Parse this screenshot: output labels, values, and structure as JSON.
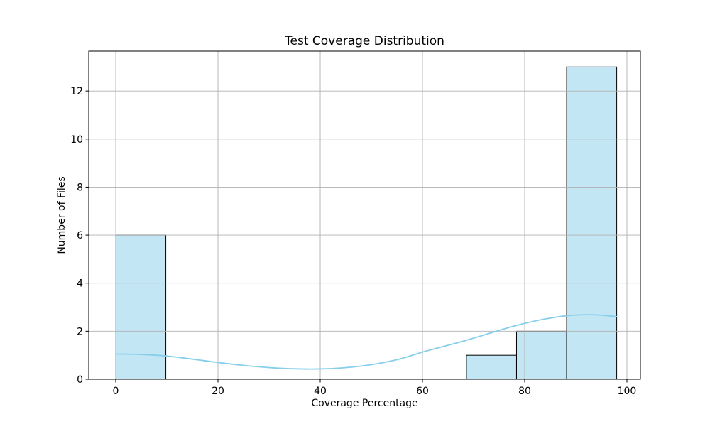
{
  "figure": {
    "background": "#ffffff"
  },
  "chart_data": {
    "type": "bar",
    "subtype": "histogram-with-kde",
    "title": "Test Coverage Distribution",
    "xlabel": "Coverage Percentage",
    "ylabel": "Number of Files",
    "xlim": [
      -5.28,
      102.64
    ],
    "ylim": [
      0,
      13.66
    ],
    "xticks": [
      0,
      20,
      40,
      60,
      80,
      100
    ],
    "yticks": [
      0,
      2,
      4,
      6,
      8,
      10,
      12
    ],
    "grid": true,
    "legend": false,
    "bin_edges": [
      0,
      9.8,
      19.6,
      29.4,
      39.2,
      49.0,
      58.8,
      68.6,
      78.4,
      88.2,
      98.0
    ],
    "bin_counts": [
      6,
      0,
      0,
      0,
      0,
      0,
      0,
      1,
      2,
      13
    ],
    "kde_curve": {
      "x": [
        0,
        4,
        8,
        12,
        16,
        20,
        24,
        28,
        32,
        36,
        40,
        44,
        48,
        52,
        56,
        60,
        64,
        68,
        72,
        76,
        80,
        84,
        88,
        91,
        94,
        98
      ],
      "y": [
        1.05,
        1.04,
        1.0,
        0.92,
        0.81,
        0.7,
        0.6,
        0.52,
        0.46,
        0.43,
        0.43,
        0.47,
        0.55,
        0.68,
        0.87,
        1.13,
        1.36,
        1.59,
        1.84,
        2.1,
        2.33,
        2.51,
        2.64,
        2.68,
        2.68,
        2.61
      ]
    },
    "colors": {
      "bar_fill": "#c3e6f5",
      "bar_edge": "#000000",
      "kde_line": "#87ceeb",
      "grid_line": "#b0b0b0",
      "axis": "#000000",
      "text": "#000000"
    }
  }
}
